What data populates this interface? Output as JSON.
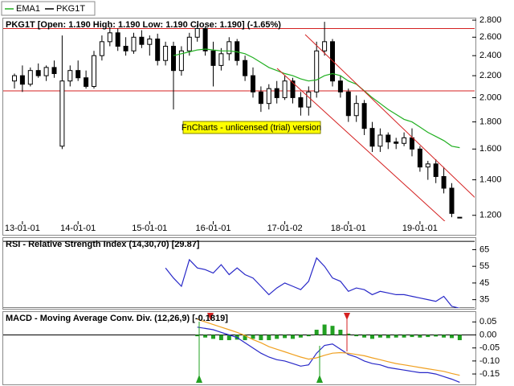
{
  "chart_data": [
    {
      "type": "candlestick",
      "title": "PKG1T [Open: 1.190  High: 1.190  Low: 1.190  Close: 1.190] (-1.65%)",
      "name": "PKG1T",
      "color": "#000000",
      "open": [
        2.15,
        2.2,
        2.12,
        2.25,
        2.2,
        2.28,
        1.62,
        2.15,
        2.25,
        2.18,
        2.1,
        2.4,
        2.55,
        2.65,
        2.5,
        2.45,
        2.6,
        2.52,
        2.58,
        2.35,
        2.5,
        2.25,
        2.45,
        2.6,
        2.7,
        2.45,
        2.3,
        2.42,
        2.55,
        2.35,
        2.2,
        2.05,
        1.95,
        2.08,
        2.0,
        2.15,
        2.0,
        1.92,
        2.05,
        2.45,
        2.55,
        2.15,
        2.05,
        1.85,
        1.95,
        1.75,
        1.62,
        1.7,
        1.65,
        1.64,
        1.68,
        1.6,
        1.48,
        1.5,
        1.42,
        1.35,
        1.19
      ],
      "high": [
        2.22,
        2.3,
        2.28,
        2.32,
        2.3,
        2.35,
        2.62,
        2.3,
        2.35,
        2.25,
        2.45,
        2.62,
        2.72,
        2.7,
        2.6,
        2.65,
        2.68,
        2.62,
        2.64,
        2.55,
        2.55,
        2.5,
        2.65,
        2.75,
        2.72,
        2.55,
        2.48,
        2.6,
        2.58,
        2.4,
        2.28,
        2.1,
        2.12,
        2.15,
        2.2,
        2.18,
        2.05,
        2.1,
        2.55,
        2.78,
        2.58,
        2.2,
        2.08,
        2.02,
        1.98,
        1.8,
        1.75,
        1.72,
        1.68,
        1.72,
        1.75,
        1.62,
        1.52,
        1.53,
        1.48,
        1.38,
        1.19
      ],
      "low": [
        2.08,
        2.05,
        2.1,
        2.18,
        2.15,
        2.18,
        1.6,
        2.1,
        2.15,
        2.08,
        2.08,
        2.35,
        2.5,
        2.45,
        2.4,
        2.42,
        2.48,
        2.4,
        2.3,
        2.3,
        1.9,
        2.2,
        2.4,
        2.55,
        2.4,
        2.1,
        2.25,
        2.35,
        2.3,
        2.15,
        2.0,
        1.88,
        1.9,
        1.95,
        1.98,
        1.95,
        1.85,
        1.85,
        2.0,
        2.4,
        2.1,
        2.0,
        1.8,
        1.8,
        1.7,
        1.58,
        1.58,
        1.6,
        1.6,
        1.62,
        1.55,
        1.45,
        1.4,
        1.38,
        1.32,
        1.19,
        1.19
      ],
      "close": [
        2.2,
        2.12,
        2.25,
        2.2,
        2.28,
        2.22,
        2.15,
        2.25,
        2.18,
        2.1,
        2.4,
        2.55,
        2.65,
        2.5,
        2.45,
        2.6,
        2.52,
        2.58,
        2.35,
        2.5,
        2.25,
        2.45,
        2.6,
        2.7,
        2.45,
        2.3,
        2.42,
        2.55,
        2.35,
        2.2,
        2.05,
        1.95,
        2.08,
        2.0,
        2.15,
        2.0,
        1.92,
        2.05,
        2.45,
        2.55,
        2.15,
        2.05,
        1.85,
        1.95,
        1.75,
        1.62,
        1.7,
        1.65,
        1.64,
        1.68,
        1.6,
        1.48,
        1.5,
        1.42,
        1.35,
        1.21,
        1.19
      ],
      "series": [
        {
          "name": "EMA1",
          "color": "#22b022",
          "values": [
            null,
            null,
            null,
            null,
            null,
            null,
            null,
            null,
            null,
            null,
            null,
            null,
            null,
            null,
            null,
            null,
            null,
            null,
            null,
            null,
            2.4,
            2.42,
            2.44,
            2.46,
            2.47,
            2.46,
            2.45,
            2.45,
            2.44,
            2.42,
            2.38,
            2.33,
            2.28,
            2.25,
            2.22,
            2.2,
            2.17,
            2.15,
            2.16,
            2.2,
            2.22,
            2.2,
            2.15,
            2.12,
            2.06,
            2.0,
            1.95,
            1.9,
            1.86,
            1.82,
            1.8,
            1.76,
            1.72,
            1.69,
            1.66,
            1.62,
            1.61
          ]
        }
      ],
      "log_scale": true,
      "ylim": [
        1.17,
        2.82
      ],
      "yticks": [
        {
          "value": 2.8,
          "label": "2.800"
        },
        {
          "value": 2.6,
          "label": "2.600"
        },
        {
          "value": 2.4,
          "label": "2.400"
        },
        {
          "value": 2.2,
          "label": "2.200"
        },
        {
          "value": 2.0,
          "label": "2.000"
        },
        {
          "value": 1.8,
          "label": "1.800"
        },
        {
          "value": 1.6,
          "label": "1.600"
        },
        {
          "value": 1.4,
          "label": "1.400"
        },
        {
          "value": 1.2,
          "label": "1.200"
        }
      ],
      "xticks": [
        {
          "value": 1,
          "label": "13-01-01"
        },
        {
          "value": 8,
          "label": "14-01-01"
        },
        {
          "value": 17,
          "label": "15-01-01"
        },
        {
          "value": 25,
          "label": "16-01-01"
        },
        {
          "value": 34,
          "label": "17-01-02"
        },
        {
          "value": 42,
          "label": "18-01-01"
        },
        {
          "value": 51,
          "label": "19-01-01"
        }
      ],
      "hlines": [
        2.7,
        2.06
      ],
      "hline_color": "#d42020",
      "annotation": "FnCharts - unlicensed (trial) version"
    },
    {
      "type": "line",
      "title": "RSI - Relative Strength Index (14,30,70) [29.87]",
      "series": [
        {
          "color": "#2828c8",
          "values": [
            null,
            null,
            null,
            null,
            null,
            null,
            null,
            null,
            null,
            null,
            null,
            null,
            null,
            null,
            null,
            null,
            null,
            null,
            null,
            54,
            48,
            43,
            59,
            54,
            53,
            51,
            56,
            50,
            54,
            50,
            48,
            43,
            38,
            42,
            45,
            43,
            41,
            46,
            60,
            55,
            48,
            46,
            40,
            42,
            41,
            38,
            40,
            39,
            38,
            38,
            37,
            36,
            35,
            34,
            37,
            31,
            29.87
          ]
        }
      ],
      "ylim": [
        30,
        71
      ],
      "yticks": [
        35,
        45,
        55,
        65
      ],
      "hlines": [
        30,
        70
      ],
      "hline_color": "#000000"
    },
    {
      "type": "line",
      "title": "MACD - Moving Average Conv. Div. (12,26,9) [-0.1819]",
      "series": [
        {
          "color": "#2828c8",
          "values": [
            null,
            null,
            null,
            null,
            null,
            null,
            null,
            null,
            null,
            null,
            null,
            null,
            null,
            null,
            null,
            null,
            null,
            null,
            null,
            null,
            null,
            null,
            null,
            0.03,
            0.025,
            0.02,
            0.01,
            0,
            -0.01,
            -0.03,
            -0.05,
            -0.07,
            -0.085,
            -0.095,
            -0.1,
            -0.11,
            -0.12,
            -0.115,
            -0.07,
            -0.04,
            -0.035,
            -0.055,
            -0.075,
            -0.085,
            -0.1,
            -0.11,
            -0.115,
            -0.125,
            -0.13,
            -0.135,
            -0.14,
            -0.145,
            -0.145,
            -0.15,
            -0.16,
            -0.17,
            -0.1819
          ]
        },
        {
          "color": "#f0a020",
          "values": [
            null,
            null,
            null,
            null,
            null,
            null,
            null,
            null,
            null,
            null,
            null,
            null,
            null,
            null,
            null,
            null,
            null,
            null,
            null,
            null,
            null,
            null,
            null,
            0.06,
            0.05,
            0.04,
            0.03,
            0.02,
            0.01,
            -0.002,
            -0.018,
            -0.03,
            -0.045,
            -0.055,
            -0.065,
            -0.075,
            -0.085,
            -0.093,
            -0.088,
            -0.078,
            -0.07,
            -0.068,
            -0.07,
            -0.075,
            -0.08,
            -0.088,
            -0.095,
            -0.103,
            -0.11,
            -0.115,
            -0.12,
            -0.125,
            -0.13,
            -0.135,
            -0.14,
            -0.148,
            -0.155
          ]
        }
      ],
      "histogram": {
        "color": "#22a022",
        "values": [
          null,
          null,
          null,
          null,
          null,
          null,
          null,
          null,
          null,
          null,
          null,
          null,
          null,
          null,
          null,
          null,
          null,
          null,
          null,
          null,
          null,
          null,
          null,
          -0.005,
          -0.01,
          -0.015,
          -0.02,
          -0.02,
          -0.018,
          -0.02,
          -0.015,
          -0.02,
          -0.02,
          -0.015,
          -0.012,
          -0.015,
          -0.01,
          -0.005,
          0.02,
          0.04,
          0.035,
          0.02,
          0.005,
          -0.005,
          -0.01,
          -0.015,
          -0.01,
          -0.012,
          -0.01,
          -0.01,
          -0.008,
          -0.01,
          -0.008,
          -0.006,
          -0.01,
          -0.012,
          -0.02
        ]
      },
      "ylim": [
        -0.19,
        0.085
      ],
      "yticks": [
        0.05,
        {
          "value": 0,
          "label": "0.00"
        },
        -0.05,
        {
          "value": -0.1,
          "label": "-0.10"
        },
        -0.15
      ],
      "hlines": [
        0
      ],
      "hline_color": "#000000"
    }
  ]
}
